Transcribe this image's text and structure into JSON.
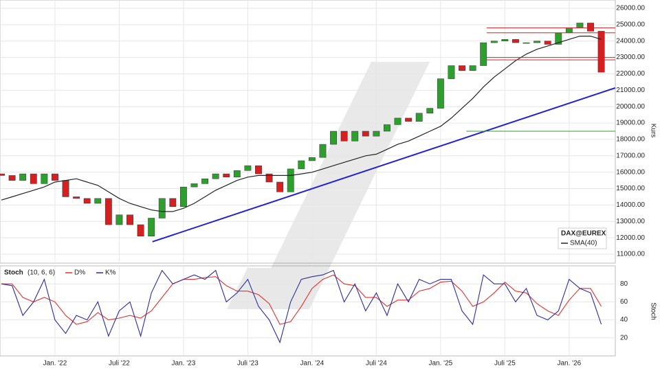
{
  "chart_data": [
    {
      "type": "candlestick",
      "name": "DAX@EUREX",
      "up_color": "#2e9e2e",
      "down_color": "#d42020",
      "x": [
        -5,
        -4,
        -3,
        -2,
        -1,
        0,
        1,
        2,
        3,
        4,
        5,
        6,
        7,
        8,
        9,
        10,
        11,
        12,
        13,
        14,
        15,
        16,
        17,
        18,
        19,
        20,
        21,
        22,
        23,
        24,
        25,
        26,
        27,
        28,
        29,
        30,
        31,
        32,
        33,
        34,
        35,
        36,
        37,
        38,
        39,
        40,
        41,
        42,
        43,
        44,
        45,
        46,
        47,
        48,
        49,
        50,
        51
      ],
      "open": [
        15900,
        15800,
        15500,
        15900,
        15300,
        15900,
        15500,
        14500,
        14400,
        14100,
        14400,
        12800,
        13400,
        12800,
        12100,
        13200,
        14400,
        13900,
        15100,
        15300,
        15600,
        15900,
        15700,
        16100,
        16400,
        15900,
        15400,
        14800,
        16200,
        16700,
        16900,
        17700,
        18500,
        17900,
        18500,
        18200,
        18500,
        18900,
        19300,
        19100,
        19600,
        19900,
        21700,
        22500,
        22200,
        22500,
        23900,
        24000,
        24100,
        23900,
        23900,
        24000,
        23800,
        24500,
        24800,
        25100,
        24600
      ],
      "close": [
        15800,
        15500,
        15900,
        15300,
        15900,
        15500,
        14500,
        14400,
        14100,
        14400,
        12800,
        13400,
        12800,
        12100,
        13200,
        14400,
        13900,
        15100,
        15300,
        15600,
        15900,
        15700,
        16100,
        16400,
        15900,
        15400,
        14800,
        16200,
        16700,
        16900,
        17700,
        18500,
        17900,
        18500,
        18200,
        18500,
        18900,
        19300,
        19100,
        19600,
        19900,
        21700,
        22500,
        22200,
        22500,
        23900,
        24000,
        24100,
        23900,
        23900,
        24000,
        23800,
        24500,
        24800,
        25100,
        24600,
        22100
      ],
      "series": [
        {
          "name": "SMA(40)",
          "color": "#222222",
          "values": [
            14300,
            14500,
            14700,
            14900,
            15100,
            15400,
            15500,
            15600,
            15400,
            15200,
            14800,
            14400,
            14100,
            13900,
            13700,
            13600,
            13600,
            13800,
            14100,
            14500,
            14900,
            15200,
            15500,
            15700,
            15800,
            15800,
            15800,
            15800,
            15900,
            16000,
            16200,
            16400,
            16600,
            16800,
            17000,
            17100,
            17400,
            17700,
            17900,
            18200,
            18500,
            18800,
            19300,
            19900,
            20500,
            21200,
            21800,
            22300,
            22800,
            23200,
            23500,
            23700,
            23900,
            24100,
            24300,
            24300,
            24100
          ]
        }
      ],
      "trendlines": [
        {
          "color": "#2222cc",
          "x": [
            9.1,
            52.3
          ],
          "y": [
            11760,
            21140
          ]
        },
        {
          "color": "#d42020",
          "x": [
            40.3,
            52.3
          ],
          "y": [
            24800,
            24800
          ]
        },
        {
          "color": "#d42020",
          "x": [
            40.3,
            52.3
          ],
          "y": [
            24500,
            24500
          ]
        },
        {
          "color": "#d42020",
          "x": [
            40.3,
            52.3
          ],
          "y": [
            23000,
            23000
          ]
        },
        {
          "color": "#d42020",
          "x": [
            40.3,
            52.3
          ],
          "y": [
            22850,
            22850
          ]
        },
        {
          "color": "#2e9e2e",
          "x": [
            38.4,
            52.3
          ],
          "y": [
            18500,
            18500
          ]
        }
      ],
      "ylabel": "Kurs",
      "legend": "lower right",
      "grid": true,
      "xlim": [
        -5.13,
        52.31
      ],
      "ylim": [
        10455,
        26503
      ],
      "yticks": [
        {
          "value": 11000,
          "label": "11000.00"
        },
        {
          "value": 12000,
          "label": "12000.00"
        },
        {
          "value": 13000,
          "label": "13000.00"
        },
        {
          "value": 14000,
          "label": "14000.00"
        },
        {
          "value": 15000,
          "label": "15000.00"
        },
        {
          "value": 16000,
          "label": "16000.00"
        },
        {
          "value": 17000,
          "label": "17000.00"
        },
        {
          "value": 18000,
          "label": "18000.00"
        },
        {
          "value": 19000,
          "label": "19000.00"
        },
        {
          "value": 20000,
          "label": "20000.00"
        },
        {
          "value": 21000,
          "label": "21000.00"
        },
        {
          "value": 22000,
          "label": "22000.00"
        },
        {
          "value": 23000,
          "label": "23000.00"
        },
        {
          "value": 24000,
          "label": "24000.00"
        },
        {
          "value": 25000,
          "label": "25000.00"
        },
        {
          "value": 26000,
          "label": "26000.00"
        }
      ]
    },
    {
      "type": "line",
      "title": "Stoch",
      "subtitle": "(10, 6, 6)",
      "ylabel": "Stoch",
      "grid": true,
      "x": [
        -5,
        -4,
        -3,
        -2,
        -1,
        0,
        1,
        2,
        3,
        4,
        5,
        6,
        7,
        8,
        9,
        10,
        11,
        12,
        13,
        14,
        15,
        16,
        17,
        18,
        19,
        20,
        21,
        22,
        23,
        24,
        25,
        26,
        27,
        28,
        29,
        30,
        31,
        32,
        33,
        34,
        35,
        36,
        37,
        38,
        39,
        40,
        41,
        42,
        43,
        44,
        45,
        46,
        47,
        48,
        49,
        50,
        51
      ],
      "series": [
        {
          "name": "D%",
          "color": "#e03030",
          "values": [
            80,
            80,
            65,
            60,
            65,
            60,
            45,
            35,
            38,
            48,
            40,
            42,
            45,
            42,
            50,
            65,
            80,
            85,
            85,
            87,
            88,
            78,
            72,
            72,
            68,
            58,
            35,
            38,
            55,
            75,
            85,
            90,
            80,
            78,
            65,
            65,
            55,
            62,
            62,
            72,
            75,
            82,
            83,
            72,
            55,
            60,
            70,
            82,
            72,
            70,
            58,
            50,
            45,
            62,
            75,
            75,
            55
          ]
        },
        {
          "name": "K%",
          "color": "#2b2b9c",
          "values": [
            80,
            78,
            45,
            60,
            85,
            40,
            25,
            45,
            40,
            60,
            22,
            50,
            60,
            22,
            70,
            95,
            80,
            85,
            90,
            85,
            95,
            60,
            70,
            85,
            55,
            40,
            15,
            60,
            85,
            88,
            90,
            95,
            60,
            80,
            50,
            70,
            45,
            80,
            60,
            85,
            80,
            85,
            85,
            50,
            35,
            90,
            80,
            80,
            60,
            75,
            45,
            40,
            50,
            85,
            75,
            70,
            35
          ]
        }
      ],
      "xlim": [
        -5.13,
        52.31
      ],
      "ylim": [
        0,
        100
      ],
      "yticks": [
        20,
        40,
        60,
        80
      ],
      "xticks": [
        {
          "value": 0,
          "label": "Jan. '22"
        },
        {
          "value": 6,
          "label": "Juli '22"
        },
        {
          "value": 12,
          "label": "Jan. '23"
        },
        {
          "value": 18,
          "label": "Juli '23"
        },
        {
          "value": 24,
          "label": "Jan. '24"
        },
        {
          "value": 30,
          "label": "Juli '24"
        },
        {
          "value": 36,
          "label": "Jan. '25"
        },
        {
          "value": 42,
          "label": "Juli '25"
        },
        {
          "value": 48,
          "label": "Jan. '26"
        }
      ]
    }
  ]
}
